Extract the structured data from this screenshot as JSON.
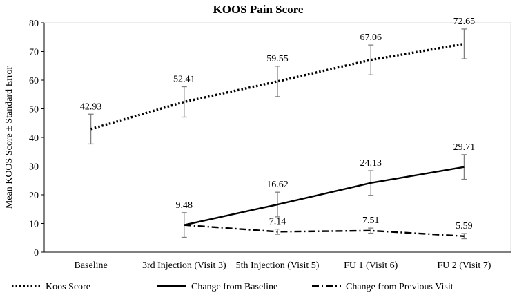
{
  "chart_data": {
    "type": "line",
    "title": "KOOS Pain Score",
    "xlabel": "",
    "ylabel": "Mean KOOS Score ± Standard Error",
    "ylim": [
      0,
      80
    ],
    "yticks": [
      0,
      10,
      20,
      30,
      40,
      50,
      60,
      70,
      80
    ],
    "categories": [
      "Baseline",
      "3rd Injection (Visit 3)",
      "5th Injection (Visit 5)",
      "FU 1 (Visit 6)",
      "FU 2 (Visit 7)"
    ],
    "grid": false,
    "legend_position": "bottom",
    "series": [
      {
        "name": "Koos Score",
        "style": "dotted",
        "values": [
          42.93,
          52.41,
          59.55,
          67.06,
          72.65
        ],
        "error": [
          5.2,
          5.3,
          5.3,
          5.2,
          5.2
        ],
        "labels": [
          "42.93",
          "52.41",
          "59.55",
          "67.06",
          "72.65"
        ]
      },
      {
        "name": "Change from Baseline",
        "style": "solid",
        "values": [
          null,
          9.48,
          16.62,
          24.13,
          29.71
        ],
        "error": [
          null,
          4.3,
          4.3,
          4.3,
          4.3
        ],
        "labels": [
          "",
          "9.48",
          "16.62",
          "24.13",
          "29.71"
        ]
      },
      {
        "name": "Change from Previous Visit",
        "style": "dashdot",
        "values": [
          null,
          9.48,
          7.14,
          7.51,
          5.59
        ],
        "error": [
          null,
          0,
          0.9,
          0.9,
          0.9
        ],
        "labels": [
          "",
          "",
          "7.14",
          "7.51",
          "5.59"
        ]
      }
    ],
    "colors": {
      "line": "#000000",
      "error_bar": "#7f7f7f",
      "plot_border": "#d9d9d9"
    }
  }
}
